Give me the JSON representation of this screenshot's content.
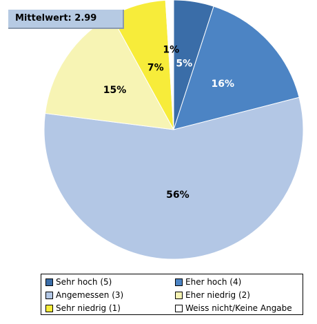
{
  "mean_label": "Mittelwert: 2.99",
  "chart_data": {
    "type": "pie",
    "title": "",
    "start_angle_deg": 0,
    "direction": "clockwise",
    "slices": [
      {
        "name": "Sehr hoch (5)",
        "value": 5,
        "label": "5%",
        "color": "#3a6da8",
        "label_color": "#ffffff"
      },
      {
        "name": "Eher hoch (4)",
        "value": 16,
        "label": "16%",
        "color": "#4c84c4",
        "label_color": "#ffffff"
      },
      {
        "name": "Angemessen (3)",
        "value": 56,
        "label": "56%",
        "color": "#b3c7e5",
        "label_color": "#000000"
      },
      {
        "name": "Eher niedrig (2)",
        "value": 15,
        "label": "15%",
        "color": "#f7f4b4",
        "label_color": "#000000"
      },
      {
        "name": "Sehr niedrig (1)",
        "value": 7,
        "label": "7%",
        "color": "#f7ec3a",
        "label_color": "#000000"
      },
      {
        "name": "Weiss nicht/Keine Angabe",
        "value": 1,
        "label": "1%",
        "color": "#ffffff",
        "label_color": "#000000"
      }
    ],
    "legend_placement": "bottom"
  },
  "legend": [
    {
      "label": "Sehr hoch (5)",
      "color": "#3a6da8"
    },
    {
      "label": "Eher hoch (4)",
      "color": "#4c84c4"
    },
    {
      "label": "Angemessen (3)",
      "color": "#b3c7e5"
    },
    {
      "label": "Eher niedrig (2)",
      "color": "#f7f4b4"
    },
    {
      "label": "Sehr niedrig (1)",
      "color": "#f7ec3a"
    },
    {
      "label": "Weiss nicht/Keine Angabe",
      "color": "#ffffff"
    }
  ]
}
